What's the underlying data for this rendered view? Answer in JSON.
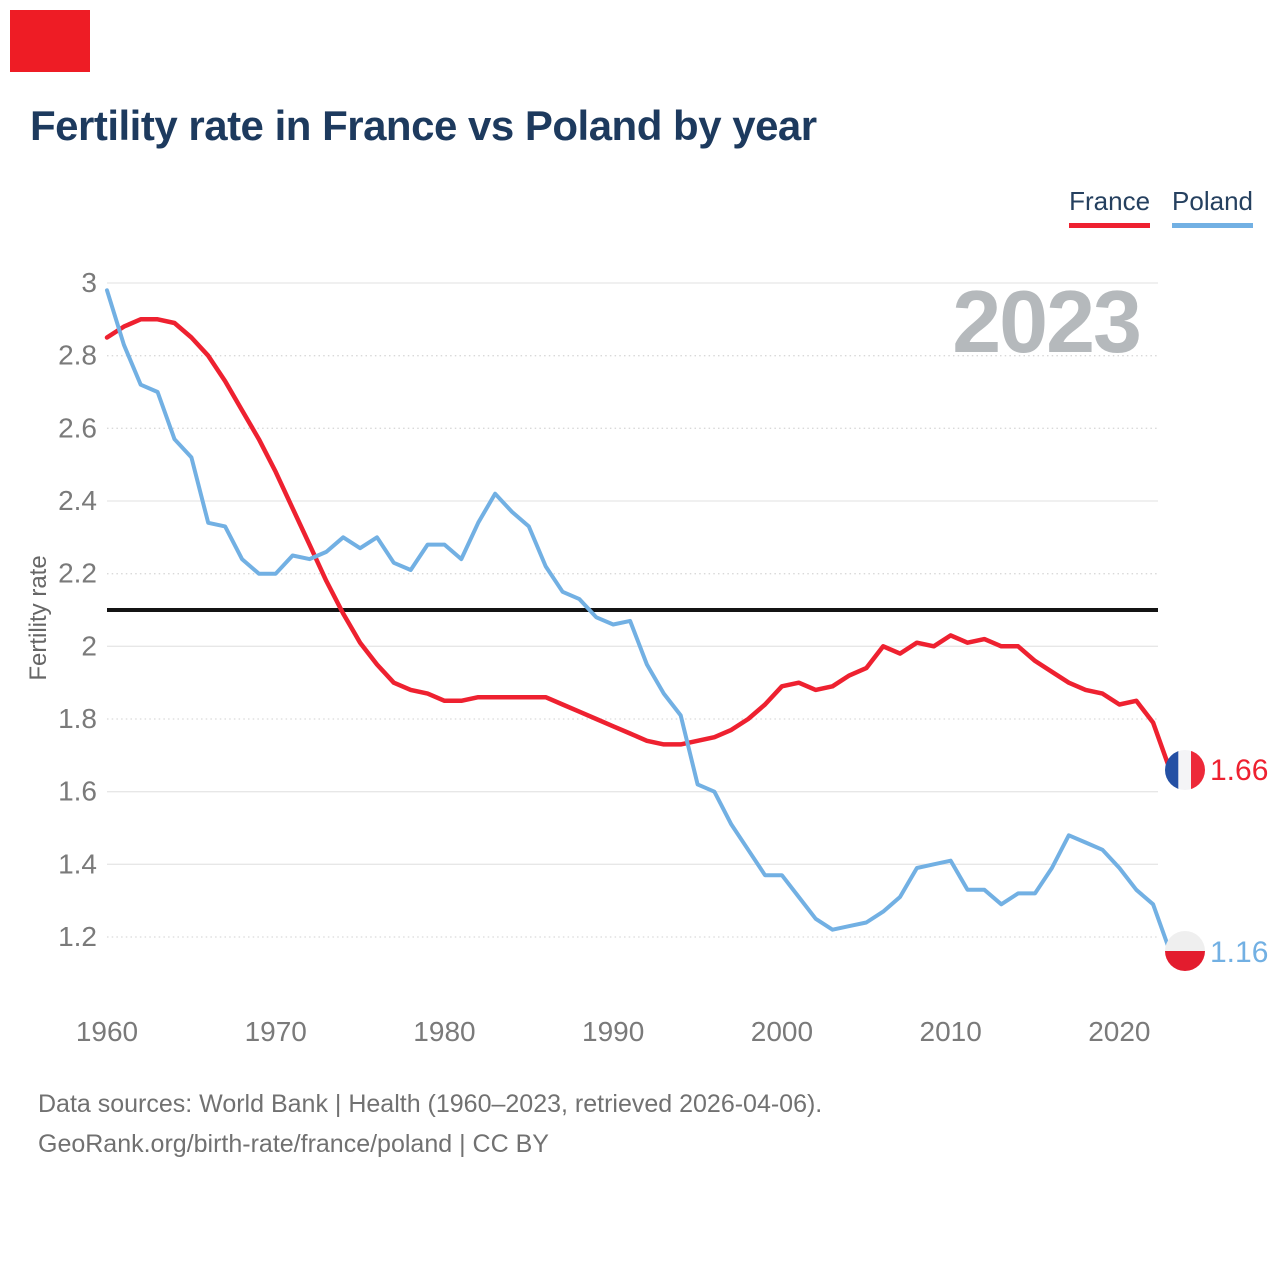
{
  "brand": {
    "accent_color": "#ee1c25"
  },
  "header": {
    "title": "Fertility rate in France vs Poland by year"
  },
  "chart_data": {
    "type": "line",
    "title": "Fertility rate in France vs Poland by year",
    "xlabel": "",
    "ylabel": "Fertility rate",
    "watermark": "2023",
    "xlim": [
      1960,
      2023
    ],
    "ylim": [
      1.2,
      3.0
    ],
    "x_ticks": [
      1960,
      1970,
      1980,
      1990,
      2000,
      2010,
      2020
    ],
    "y_ticks": [
      3,
      2.8,
      2.6,
      2.4,
      2.2,
      2,
      1.8,
      1.6,
      1.4,
      1.2
    ],
    "grid": true,
    "legend_position": "top-right",
    "reference_line": 2.1,
    "x": [
      1960,
      1961,
      1962,
      1963,
      1964,
      1965,
      1966,
      1967,
      1968,
      1969,
      1970,
      1971,
      1972,
      1973,
      1974,
      1975,
      1976,
      1977,
      1978,
      1979,
      1980,
      1981,
      1982,
      1983,
      1984,
      1985,
      1986,
      1987,
      1988,
      1989,
      1990,
      1991,
      1992,
      1993,
      1994,
      1995,
      1996,
      1997,
      1998,
      1999,
      2000,
      2001,
      2002,
      2003,
      2004,
      2005,
      2006,
      2007,
      2008,
      2009,
      2010,
      2011,
      2012,
      2013,
      2014,
      2015,
      2016,
      2017,
      2018,
      2019,
      2020,
      2021,
      2022,
      2023
    ],
    "series": [
      {
        "name": "France",
        "color": "#ee2130",
        "end_label": "1.66",
        "end_value": 1.66,
        "values": [
          2.85,
          2.88,
          2.9,
          2.9,
          2.89,
          2.85,
          2.8,
          2.73,
          2.65,
          2.57,
          2.48,
          2.38,
          2.28,
          2.18,
          2.09,
          2.01,
          1.95,
          1.9,
          1.88,
          1.87,
          1.85,
          1.85,
          1.86,
          1.86,
          1.86,
          1.86,
          1.86,
          1.84,
          1.82,
          1.8,
          1.78,
          1.76,
          1.74,
          1.73,
          1.73,
          1.74,
          1.75,
          1.77,
          1.8,
          1.84,
          1.89,
          1.9,
          1.88,
          1.89,
          1.92,
          1.94,
          2.0,
          1.98,
          2.01,
          2.0,
          2.03,
          2.01,
          2.02,
          2.0,
          2.0,
          1.96,
          1.93,
          1.9,
          1.88,
          1.87,
          1.84,
          1.85,
          1.79,
          1.66
        ]
      },
      {
        "name": "Poland",
        "color": "#72b0e3",
        "end_label": "1.16",
        "end_value": 1.16,
        "values": [
          2.98,
          2.83,
          2.72,
          2.7,
          2.57,
          2.52,
          2.34,
          2.33,
          2.24,
          2.2,
          2.2,
          2.25,
          2.24,
          2.26,
          2.3,
          2.27,
          2.3,
          2.23,
          2.21,
          2.28,
          2.28,
          2.24,
          2.34,
          2.42,
          2.37,
          2.33,
          2.22,
          2.15,
          2.13,
          2.08,
          2.06,
          2.07,
          1.95,
          1.87,
          1.81,
          1.62,
          1.6,
          1.51,
          1.44,
          1.37,
          1.37,
          1.31,
          1.25,
          1.22,
          1.23,
          1.24,
          1.27,
          1.31,
          1.39,
          1.4,
          1.41,
          1.33,
          1.33,
          1.29,
          1.32,
          1.32,
          1.39,
          1.48,
          1.46,
          1.44,
          1.39,
          1.33,
          1.29,
          1.16
        ]
      }
    ]
  },
  "flags": {
    "france": {
      "blue": "#2450a4",
      "white": "#f4f4f6",
      "red": "#ed2939"
    },
    "poland": {
      "white": "#efefef",
      "red": "#e31c2e"
    }
  },
  "footer": {
    "line1": "Data sources: World Bank | Health (1960–2023, retrieved 2026-04-06).",
    "line2": "GeoRank.org/birth-rate/france/poland | CC BY"
  }
}
